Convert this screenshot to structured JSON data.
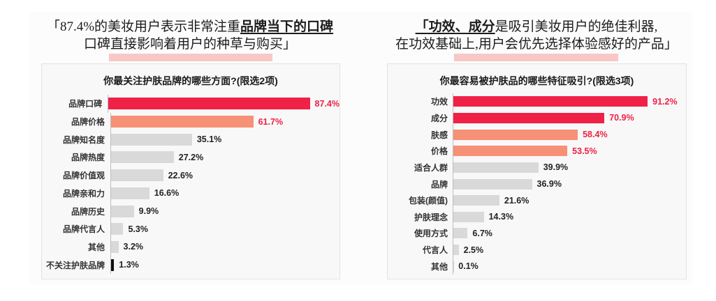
{
  "palette": {
    "red": "#ef2147",
    "salmon": "#f69077",
    "gray": "#d9d9d9",
    "black": "#111111",
    "pink_highlight": "#f8c7c7",
    "value_dark": "#222222"
  },
  "left_header": {
    "line1_pre": "「87.4%的美妆用户表示非常注重",
    "line1_em": "品牌当下的口碑",
    "line2": "口碑直接影响着用户的种草与购买」"
  },
  "right_header": {
    "line1_em": "「功效、成分",
    "line1_post": "是吸引美妆用户的绝佳利器,",
    "line2": "在功效基础上,用户会优先选择体验感好的产品」"
  },
  "chart_data": [
    {
      "type": "bar",
      "orientation": "horizontal",
      "title": "你最关注护肤品牌的哪些方面?(限选2项)",
      "xlim": [
        0,
        100
      ],
      "grid": false,
      "categories": [
        "品牌口碑",
        "品牌价格",
        "品牌知名度",
        "品牌热度",
        "品牌价值观",
        "品牌亲和力",
        "品牌历史",
        "品牌代言人",
        "其他",
        "不关注护肤品牌"
      ],
      "values": [
        87.4,
        61.7,
        35.1,
        27.2,
        22.6,
        16.6,
        9.9,
        5.3,
        3.2,
        1.3
      ],
      "value_labels": [
        "87.4%",
        "61.7%",
        "35.1%",
        "27.2%",
        "22.6%",
        "16.6%",
        "9.9%",
        "5.3%",
        "3.2%",
        "1.3%"
      ],
      "bar_colors": [
        "#ef2147",
        "#f69077",
        "#d9d9d9",
        "#d9d9d9",
        "#d9d9d9",
        "#d9d9d9",
        "#d9d9d9",
        "#d9d9d9",
        "#d9d9d9",
        "#111111"
      ],
      "value_colors": [
        "#ef2147",
        "#ef2147",
        "#222222",
        "#222222",
        "#222222",
        "#222222",
        "#222222",
        "#222222",
        "#222222",
        "#222222"
      ]
    },
    {
      "type": "bar",
      "orientation": "horizontal",
      "title": "你最容易被护肤品的哪些特征吸引?(限选3项)",
      "xlim": [
        0,
        100
      ],
      "grid": false,
      "categories": [
        "功效",
        "成分",
        "肤感",
        "价格",
        "适合人群",
        "品牌",
        "包装(颜值)",
        "护肤理念",
        "使用方式",
        "代言人",
        "其他"
      ],
      "values": [
        91.2,
        70.9,
        58.4,
        53.5,
        39.9,
        36.9,
        21.6,
        14.3,
        6.7,
        2.5,
        0.1
      ],
      "value_labels": [
        "91.2%",
        "70.9%",
        "58.4%",
        "53.5%",
        "39.9%",
        "36.9%",
        "21.6%",
        "14.3%",
        "6.7%",
        "2.5%",
        "0.1%"
      ],
      "bar_colors": [
        "#ef2147",
        "#ef2147",
        "#f69077",
        "#f69077",
        "#d9d9d9",
        "#d9d9d9",
        "#d9d9d9",
        "#d9d9d9",
        "#d9d9d9",
        "#d9d9d9",
        "#d9d9d9"
      ],
      "value_colors": [
        "#ef2147",
        "#ef2147",
        "#ef2147",
        "#ef2147",
        "#222222",
        "#222222",
        "#222222",
        "#222222",
        "#222222",
        "#222222",
        "#222222"
      ]
    }
  ]
}
